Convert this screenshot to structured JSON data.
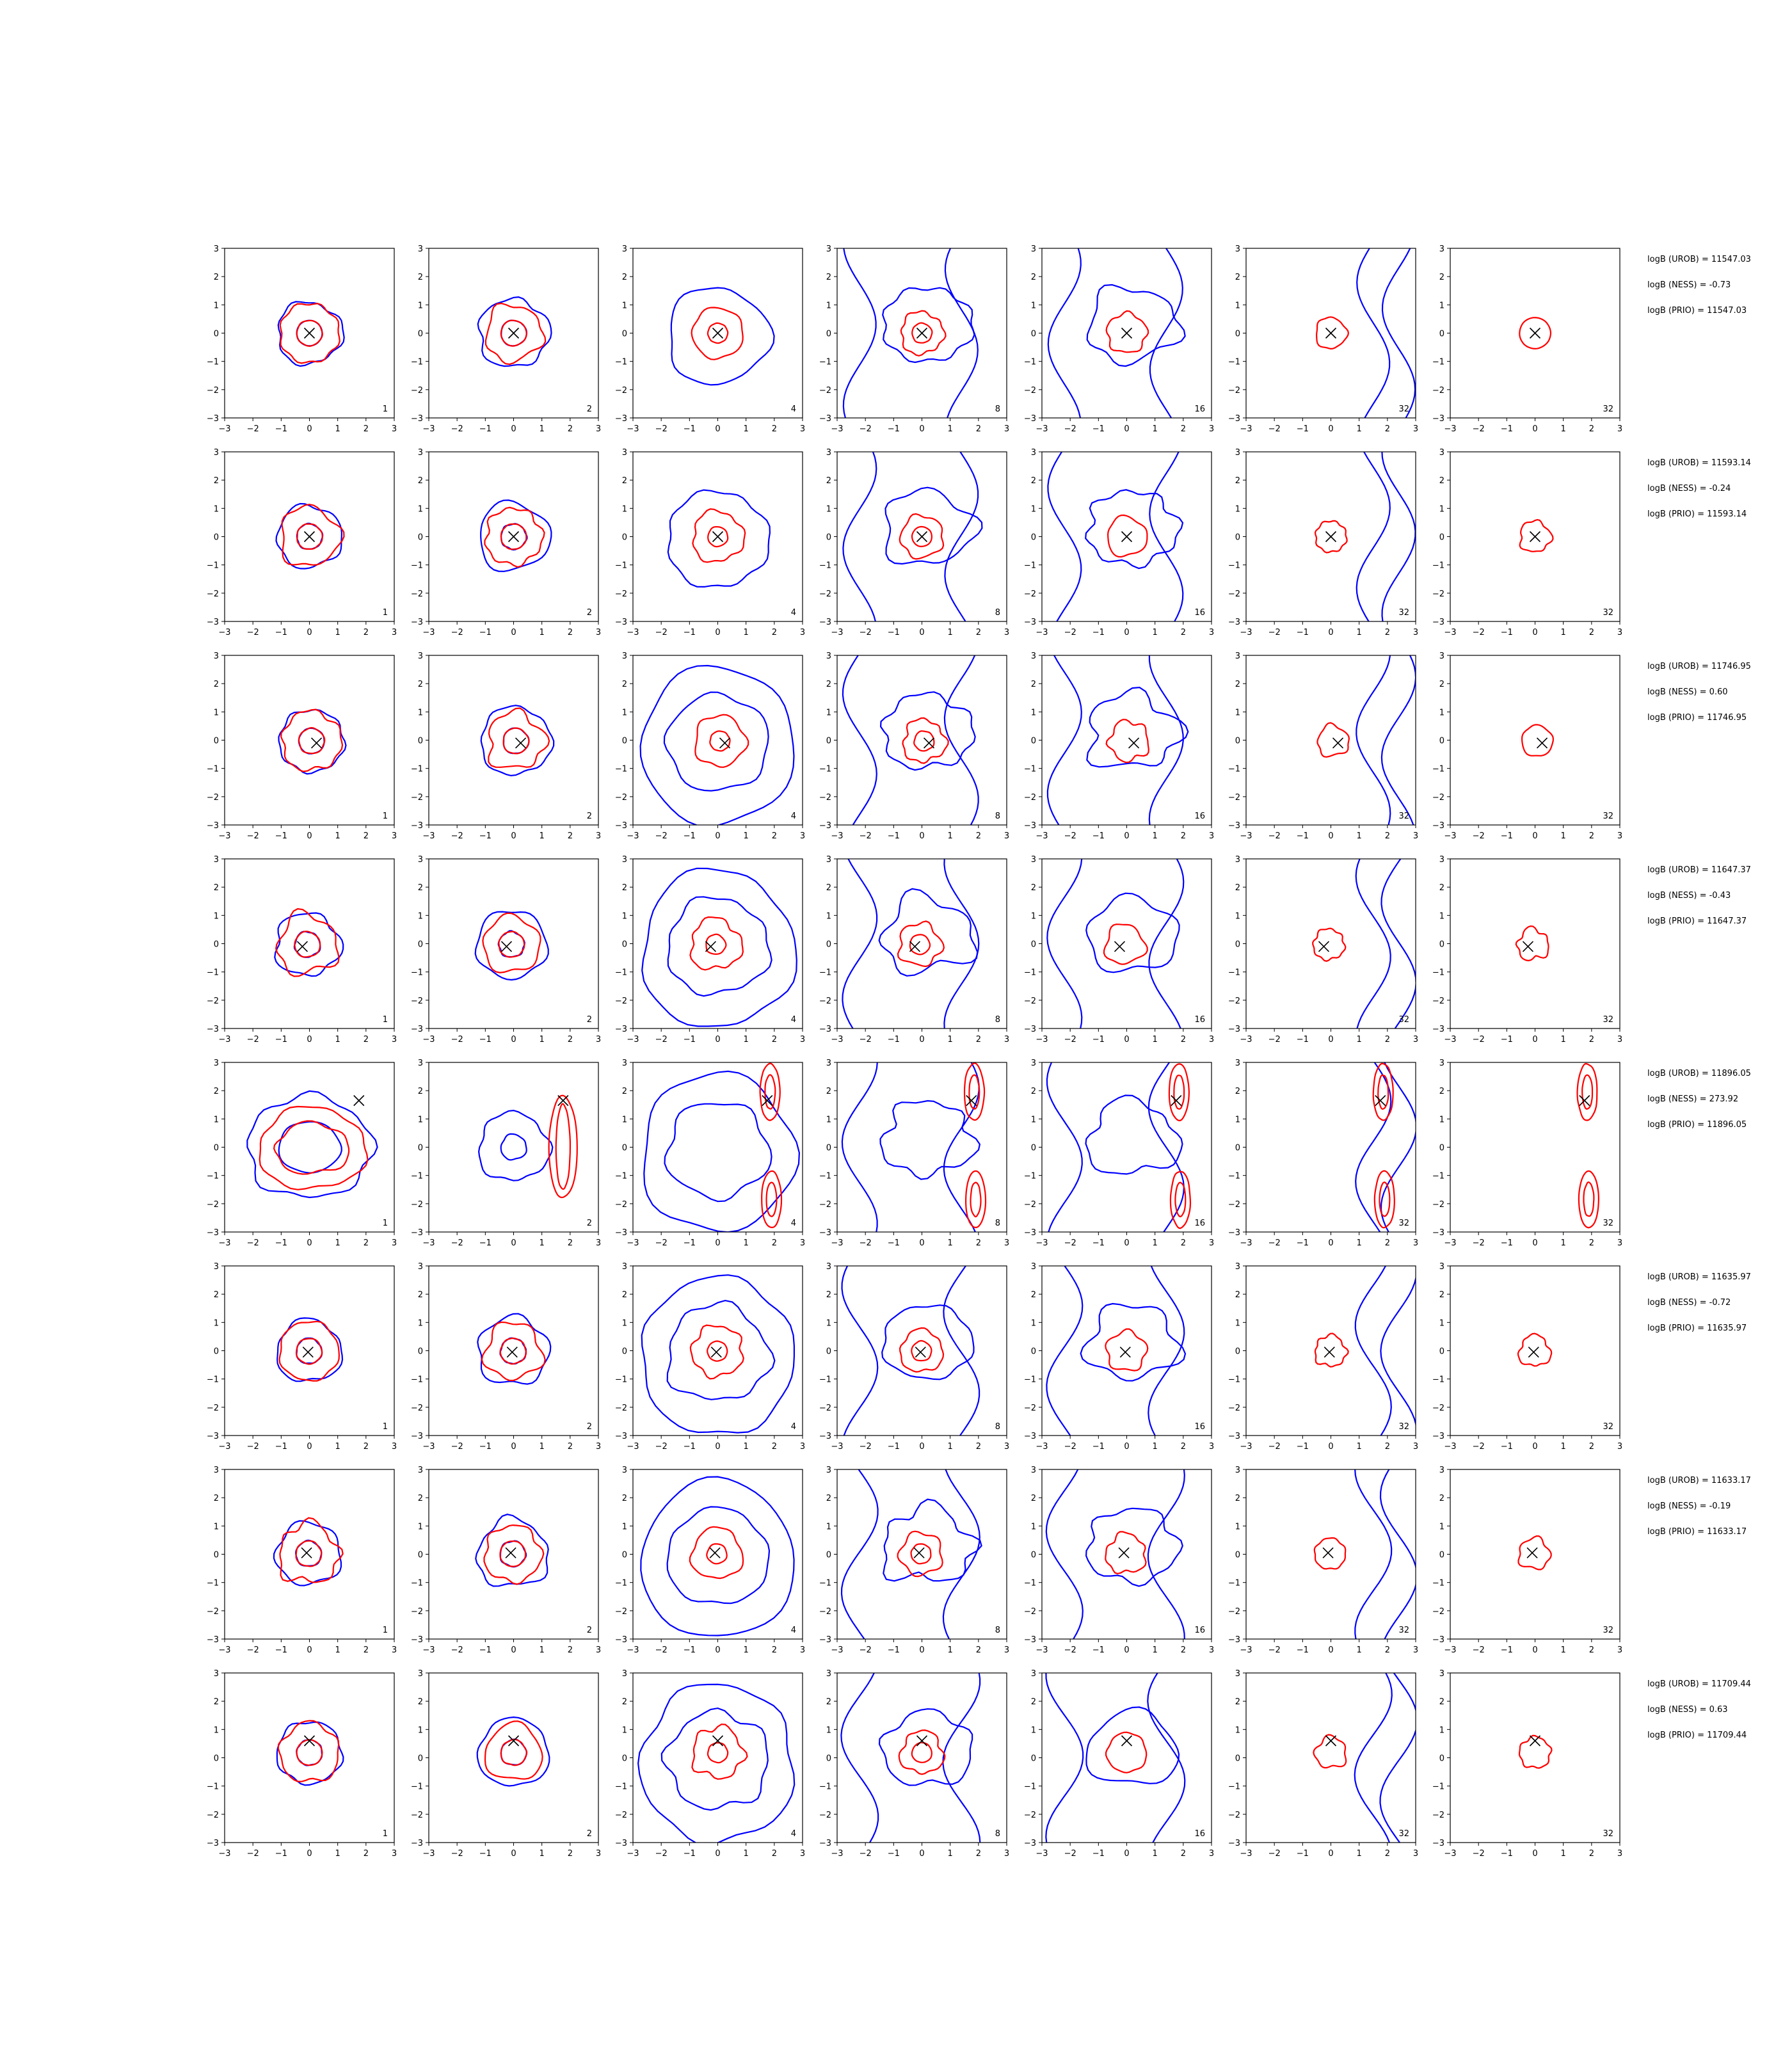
{
  "chart_data": {
    "type": "contour-grid",
    "xlim": [
      -3,
      3
    ],
    "ylim": [
      -3,
      3
    ],
    "ticks": [
      -3,
      -2,
      -1,
      0,
      1,
      2,
      3
    ],
    "tick_labels": [
      "−3",
      "−2",
      "−1",
      "0",
      "1",
      "2",
      "3"
    ],
    "grid": false,
    "columns": [
      "1",
      "2",
      "4",
      "8",
      "16",
      "32",
      "32"
    ],
    "colors": {
      "red_contour": "#ff0000",
      "blue_contour": "#0000ff",
      "marker": "#000000"
    },
    "rows": [
      {
        "marker": [
          0.0,
          0.0
        ],
        "annotations": [
          "logB (UROB) = 11547.03",
          "logB (NESS) = -0.73",
          "logB (PRIO) = 11547.03"
        ]
      },
      {
        "marker": [
          0.0,
          0.0
        ],
        "annotations": [
          "logB (UROB) = 11593.14",
          "logB (NESS) = -0.24",
          "logB (PRIO) = 11593.14"
        ]
      },
      {
        "marker": [
          0.25,
          -0.1
        ],
        "annotations": [
          "logB (UROB) = 11746.95",
          "logB (NESS) = 0.60",
          "logB (PRIO) = 11746.95"
        ]
      },
      {
        "marker": [
          -0.25,
          -0.1
        ],
        "annotations": [
          "logB (UROB) = 11647.37",
          "logB (NESS) = -0.43",
          "logB (PRIO) = 11647.37"
        ]
      },
      {
        "marker": [
          1.75,
          1.65
        ],
        "annotations": [
          "logB (UROB) = 11896.05",
          "logB (NESS) = 273.92",
          "logB (PRIO) = 11896.05"
        ]
      },
      {
        "marker": [
          -0.05,
          -0.05
        ],
        "annotations": [
          "logB (UROB) = 11635.97",
          "logB (NESS) = -0.72",
          "logB (PRIO) = 11635.97"
        ]
      },
      {
        "marker": [
          -0.1,
          0.05
        ],
        "annotations": [
          "logB (UROB) = 11633.17",
          "logB (NESS) = -0.19",
          "logB (PRIO) = 11633.17"
        ]
      },
      {
        "marker": [
          0.0,
          0.6
        ],
        "annotations": [
          "logB (UROB) = 11709.44",
          "logB (NESS) = 0.63",
          "logB (PRIO) = 11709.44"
        ]
      }
    ]
  }
}
